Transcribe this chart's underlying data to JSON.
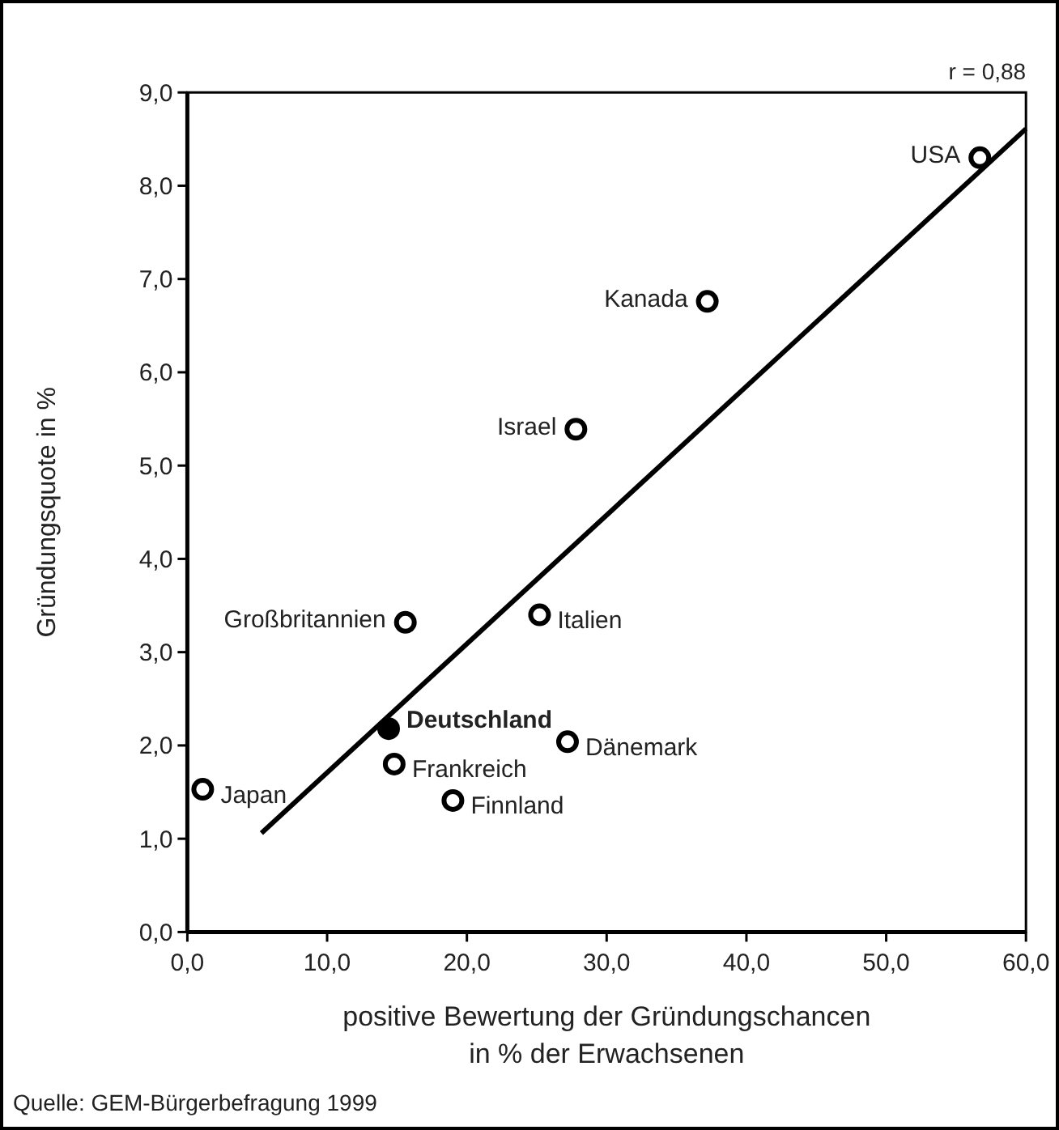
{
  "chart_data": {
    "type": "scatter",
    "xlabel": "positive Bewertung der Gründungschancen\nin % der Erwachsenen",
    "ylabel": "Gründungsquote in %",
    "xlim": [
      0,
      60
    ],
    "ylim": [
      0,
      9
    ],
    "xticks": [
      {
        "value": 0,
        "label": "0,0"
      },
      {
        "value": 10,
        "label": "10,0"
      },
      {
        "value": 20,
        "label": "20,0"
      },
      {
        "value": 30,
        "label": "30,0"
      },
      {
        "value": 40,
        "label": "40,0"
      },
      {
        "value": 50,
        "label": "50,0"
      },
      {
        "value": 60,
        "label": "60,0"
      }
    ],
    "yticks": [
      {
        "value": 0,
        "label": "0,0"
      },
      {
        "value": 1,
        "label": "1,0"
      },
      {
        "value": 2,
        "label": "2,0"
      },
      {
        "value": 3,
        "label": "3,0"
      },
      {
        "value": 4,
        "label": "4,0"
      },
      {
        "value": 5,
        "label": "5,0"
      },
      {
        "value": 6,
        "label": "6,0"
      },
      {
        "value": 7,
        "label": "7,0"
      },
      {
        "value": 8,
        "label": "8,0"
      },
      {
        "value": 9,
        "label": "9,0"
      }
    ],
    "grid": false,
    "marker": "circle",
    "series": [
      {
        "color": "#ffffff",
        "x": [
          56.7,
          37.2,
          27.8,
          15.6,
          25.2,
          27.2,
          14.8,
          19.0,
          1.1
        ],
        "values": [
          8.3,
          6.76,
          5.39,
          3.32,
          3.4,
          2.04,
          1.8,
          1.41,
          1.53
        ]
      },
      {
        "color": "#000000",
        "x": [
          14.4
        ],
        "values": [
          2.18
        ]
      },
      {
        "type": "line",
        "color": "#000000",
        "line_style": "solid",
        "marker": "none",
        "x": [
          5.3,
          60
        ],
        "values": [
          1.06,
          8.61
        ]
      }
    ],
    "annotations": [
      {
        "text": "USA",
        "x": 56.7,
        "y": 8.3
      },
      {
        "text": "Kanada",
        "x": 37.2,
        "y": 6.76
      },
      {
        "text": "Israel",
        "x": 27.8,
        "y": 5.39
      },
      {
        "text": "Großbritannien",
        "x": 15.6,
        "y": 3.32
      },
      {
        "text": "Italien",
        "x": 25.2,
        "y": 3.4
      },
      {
        "text": "Deutschland",
        "x": 14.4,
        "y": 2.18
      },
      {
        "text": "Dänemark",
        "x": 27.2,
        "y": 2.04
      },
      {
        "text": "Frankreich",
        "x": 14.8,
        "y": 1.8
      },
      {
        "text": "Finnland",
        "x": 19.0,
        "y": 1.41
      },
      {
        "text": "Japan",
        "x": 1.1,
        "y": 1.53
      },
      "r = 0,88",
      "Quelle: GEM-Bürgerbefragung 1999"
    ]
  }
}
